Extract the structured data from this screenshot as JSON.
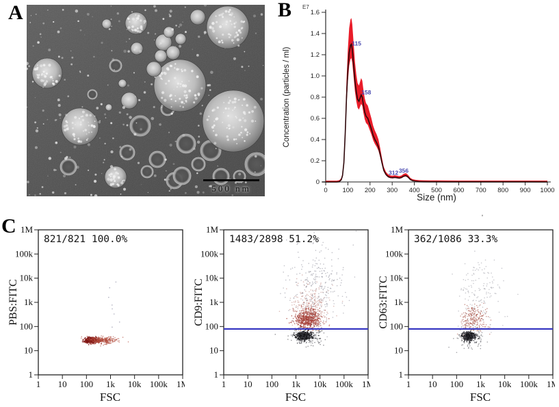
{
  "panels": {
    "a": {
      "label": "A",
      "scale_bar_text": "500 nm",
      "description": "transmission electron micrograph of exosome vesicles"
    },
    "b": {
      "label": "B"
    },
    "c": {
      "label": "C",
      "artifact_mark": "'"
    }
  },
  "chart_data": [
    {
      "id": "nta-size-distribution",
      "type": "line",
      "xlabel": "Size (nm)",
      "ylabel": "Concentration (particles / ml)",
      "y_unit": "E7",
      "xlim": [
        0,
        1000
      ],
      "ylim": [
        0,
        1.6
      ],
      "x_ticks": [
        "0",
        "100",
        "200",
        "300",
        "400",
        "500",
        "600",
        "700",
        "800",
        "900",
        "1000"
      ],
      "y_ticks": [
        "0",
        "0.2",
        "0.4",
        "0.6",
        "0.8",
        "1.0",
        "1.2",
        "1.4",
        "1.6"
      ],
      "line_color": "#2d070a",
      "band_color": "#e8101d",
      "peak_label_color": "#4a4ab0",
      "x": [
        0,
        50,
        62,
        70,
        76,
        82,
        88,
        94,
        100,
        106,
        112,
        116,
        120,
        126,
        132,
        138,
        144,
        150,
        155,
        160,
        165,
        170,
        176,
        182,
        190,
        198,
        206,
        214,
        222,
        230,
        238,
        246,
        254,
        262,
        272,
        282,
        292,
        302,
        312,
        322,
        332,
        342,
        352,
        362,
        372,
        382,
        392,
        405,
        420,
        440,
        470,
        500,
        550,
        600,
        700,
        800,
        900,
        1000
      ],
      "y": [
        0,
        0,
        0.004,
        0.02,
        0.06,
        0.18,
        0.45,
        0.8,
        1.05,
        1.22,
        1.29,
        1.3,
        1.25,
        1.1,
        0.95,
        0.85,
        0.78,
        0.76,
        0.79,
        0.82,
        0.8,
        0.73,
        0.66,
        0.62,
        0.6,
        0.55,
        0.5,
        0.44,
        0.4,
        0.37,
        0.33,
        0.26,
        0.18,
        0.11,
        0.07,
        0.05,
        0.042,
        0.04,
        0.043,
        0.04,
        0.036,
        0.042,
        0.055,
        0.06,
        0.045,
        0.022,
        0.012,
        0.007,
        0.004,
        0.003,
        0.002,
        0.002,
        0.0015,
        0.001,
        0.001,
        0.001,
        0.001,
        0.0005
      ],
      "peaks": [
        {
          "x": 115,
          "y": 1.3,
          "text": "115"
        },
        {
          "x": 158,
          "y": 0.84,
          "text": "158"
        },
        {
          "x": 306,
          "y": 0.055,
          "text": "312"
        },
        {
          "x": 352,
          "y": 0.075,
          "text": "356"
        }
      ]
    },
    {
      "id": "flow-pbs",
      "type": "scatter",
      "stats": "821/821  100.0%",
      "xlabel": "FSC",
      "ylabel": "PBS:FITC",
      "x_ticks": [
        "1",
        "10",
        "100",
        "1k",
        "10k",
        "100k",
        "1M"
      ],
      "y_ticks": [
        "1",
        "10",
        "100",
        "1k",
        "10k",
        "100k",
        "1M"
      ],
      "xlim_log": [
        0,
        6
      ],
      "ylim_log": [
        0,
        6
      ],
      "gate_line": null,
      "clusters": [
        {
          "n": 380,
          "cx": 2.2,
          "cy": 1.43,
          "sx": 0.16,
          "sy": 0.055,
          "color": "#7c1414",
          "r": 0.9,
          "alpha": 0.85
        },
        {
          "n": 330,
          "cx": 2.62,
          "cy": 1.43,
          "sx": 0.33,
          "sy": 0.075,
          "color": "#b04a3a",
          "r": 0.8,
          "alpha": 0.6
        },
        {
          "n": 8,
          "cx": 3.1,
          "cy": 2.9,
          "sx": 0.25,
          "sy": 0.85,
          "color": "#9a9aae",
          "r": 0.8,
          "alpha": 0.8
        }
      ]
    },
    {
      "id": "flow-cd9",
      "type": "scatter",
      "stats": "1483/2898  51.2%",
      "xlabel": "FSC",
      "ylabel": "CD9:FITC",
      "x_ticks": [
        "1",
        "10",
        "100",
        "1k",
        "10k",
        "100k",
        "1M"
      ],
      "y_ticks": [
        "1",
        "10",
        "100",
        "1k",
        "10k",
        "100k",
        "1M"
      ],
      "xlim_log": [
        0,
        6
      ],
      "ylim_log": [
        0,
        6
      ],
      "gate_line": {
        "y_log": 1.9,
        "color": "#3838c2"
      },
      "clusters": [
        {
          "n": 550,
          "cx": 3.5,
          "cy": 2.3,
          "sx": 0.25,
          "sy": 0.22,
          "color": "#a63c34",
          "r": 0.8,
          "alpha": 0.75
        },
        {
          "n": 300,
          "cx": 3.6,
          "cy": 2.8,
          "sx": 0.4,
          "sy": 0.5,
          "color": "#b97a72",
          "r": 0.8,
          "alpha": 0.5
        },
        {
          "n": 260,
          "cx": 3.9,
          "cy": 3.8,
          "sx": 0.55,
          "sy": 0.85,
          "color": "#8d8d99",
          "r": 0.8,
          "alpha": 0.55
        },
        {
          "n": 520,
          "cx": 3.33,
          "cy": 1.62,
          "sx": 0.16,
          "sy": 0.09,
          "color": "#16161a",
          "r": 0.8,
          "alpha": 0.85
        },
        {
          "n": 180,
          "cx": 3.4,
          "cy": 1.58,
          "sx": 0.33,
          "sy": 0.22,
          "color": "#4a4a50",
          "r": 0.8,
          "alpha": 0.6
        }
      ]
    },
    {
      "id": "flow-cd63",
      "type": "scatter",
      "stats": "362/1086  33.3%",
      "xlabel": "FSC",
      "ylabel": "CD63:FITC",
      "x_ticks": [
        "1",
        "10",
        "100",
        "1k",
        "10k",
        "100k",
        "1M"
      ],
      "y_ticks": [
        "1",
        "10",
        "100",
        "1k",
        "10k",
        "100k",
        "1M"
      ],
      "xlim_log": [
        0,
        6
      ],
      "ylim_log": [
        0,
        6
      ],
      "gate_line": {
        "y_log": 1.9,
        "color": "#3838c2"
      },
      "clusters": [
        {
          "n": 230,
          "cx": 2.7,
          "cy": 2.3,
          "sx": 0.28,
          "sy": 0.28,
          "color": "#a85448",
          "r": 0.8,
          "alpha": 0.6
        },
        {
          "n": 150,
          "cx": 2.95,
          "cy": 3.4,
          "sx": 0.5,
          "sy": 0.8,
          "color": "#93939e",
          "r": 0.8,
          "alpha": 0.5
        },
        {
          "n": 380,
          "cx": 2.5,
          "cy": 1.6,
          "sx": 0.14,
          "sy": 0.09,
          "color": "#18181c",
          "r": 0.8,
          "alpha": 0.85
        },
        {
          "n": 120,
          "cx": 2.55,
          "cy": 1.55,
          "sx": 0.3,
          "sy": 0.2,
          "color": "#55555c",
          "r": 0.8,
          "alpha": 0.55
        }
      ]
    }
  ]
}
